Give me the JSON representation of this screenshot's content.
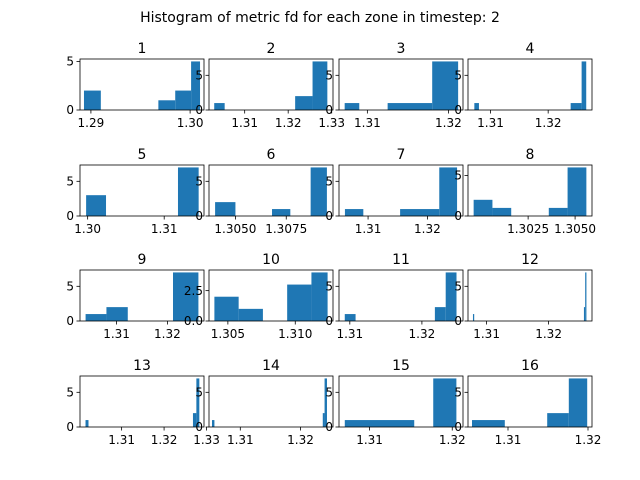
{
  "chart_data": {
    "type": "bar",
    "title": "Histogram of metric fd for each zone in timestep: 2",
    "bar_color": "#1f77b4",
    "panels": [
      {
        "label": "1",
        "xlim": [
          1.2889,
          1.3014
        ],
        "ylim": [
          0,
          5.25
        ],
        "bars": [
          [
            1.2893,
            1.291,
            2
          ],
          [
            1.2968,
            1.2985,
            1
          ],
          [
            1.2985,
            1.3001,
            2
          ],
          [
            1.3001,
            1.301,
            5
          ]
        ],
        "xticks": [
          [
            1.29,
            "1.29"
          ],
          [
            1.3,
            "1.30"
          ]
        ],
        "yticks": [
          [
            0,
            "0"
          ],
          [
            5,
            "5"
          ]
        ]
      },
      {
        "label": "2",
        "xlim": [
          1.3018,
          1.3303
        ],
        "ylim": [
          0,
          7.35
        ],
        "bars": [
          [
            1.303,
            1.3054,
            1
          ],
          [
            1.3216,
            1.3256,
            2
          ],
          [
            1.3256,
            1.329,
            7
          ]
        ],
        "xticks": [
          [
            1.31,
            "1.31"
          ],
          [
            1.32,
            "1.32"
          ],
          [
            1.33,
            "1.33"
          ]
        ],
        "yticks": [
          [
            0,
            "0"
          ],
          [
            5,
            "5"
          ]
        ]
      },
      {
        "label": "3",
        "xlim": [
          1.3065,
          1.3218
        ],
        "ylim": [
          0,
          7.35
        ],
        "bars": [
          [
            1.3072,
            1.309,
            1
          ],
          [
            1.3125,
            1.318,
            1
          ],
          [
            1.318,
            1.3212,
            7
          ]
        ],
        "xticks": [
          [
            1.31,
            "1.31"
          ],
          [
            1.32,
            "1.32"
          ]
        ],
        "yticks": [
          [
            0,
            "0"
          ],
          [
            5,
            "5"
          ]
        ]
      },
      {
        "label": "4",
        "xlim": [
          1.3061,
          1.3276
        ],
        "ylim": [
          0,
          7.35
        ],
        "bars": [
          [
            1.3072,
            1.308,
            1
          ],
          [
            1.3239,
            1.3258,
            1
          ],
          [
            1.3258,
            1.3266,
            7
          ]
        ],
        "xticks": [
          [
            1.31,
            "1.31"
          ],
          [
            1.32,
            "1.32"
          ]
        ],
        "yticks": [
          [
            0,
            "0"
          ],
          [
            5,
            "5"
          ]
        ]
      },
      {
        "label": "5",
        "xlim": [
          1.299,
          1.3152
        ],
        "ylim": [
          0,
          7.35
        ],
        "bars": [
          [
            1.2998,
            1.3024,
            3
          ],
          [
            1.3118,
            1.3145,
            7
          ]
        ],
        "xticks": [
          [
            1.3,
            "1.30"
          ],
          [
            1.31,
            "1.31"
          ]
        ],
        "yticks": [
          [
            0,
            "0"
          ],
          [
            5,
            "5"
          ]
        ]
      },
      {
        "label": "6",
        "xlim": [
          1.3037,
          1.3098
        ],
        "ylim": [
          0,
          7.35
        ],
        "bars": [
          [
            1.304,
            1.305,
            2
          ],
          [
            1.3068,
            1.3077,
            1
          ],
          [
            1.3087,
            1.3095,
            7
          ]
        ],
        "xticks": [
          [
            1.305,
            "1.3050"
          ],
          [
            1.3075,
            "1.3075"
          ]
        ],
        "yticks": [
          [
            0,
            "0"
          ],
          [
            5,
            "5"
          ]
        ]
      },
      {
        "label": "7",
        "xlim": [
          1.3051,
          1.326
        ],
        "ylim": [
          0,
          7.35
        ],
        "bars": [
          [
            1.3061,
            1.3092,
            1
          ],
          [
            1.3154,
            1.322,
            1
          ],
          [
            1.322,
            1.325,
            7
          ]
        ],
        "xticks": [
          [
            1.31,
            "1.31"
          ],
          [
            1.32,
            "1.32"
          ]
        ],
        "yticks": [
          [
            0,
            "0"
          ],
          [
            5,
            "5"
          ]
        ]
      },
      {
        "label": "8",
        "xlim": [
          1.2993,
          1.3059
        ],
        "ylim": [
          0,
          6.3
        ],
        "bars": [
          [
            1.2996,
            1.3006,
            2
          ],
          [
            1.3006,
            1.3016,
            1
          ],
          [
            1.3036,
            1.3046,
            1
          ],
          [
            1.3046,
            1.3056,
            6
          ]
        ],
        "xticks": [
          [
            1.3025,
            "1.3025"
          ],
          [
            1.305,
            "1.3050"
          ]
        ],
        "yticks": [
          [
            0,
            "0"
          ],
          [
            5,
            "5"
          ]
        ]
      },
      {
        "label": "9",
        "xlim": [
          1.3028,
          1.3272
        ],
        "ylim": [
          0,
          7.35
        ],
        "bars": [
          [
            1.3039,
            1.308,
            1
          ],
          [
            1.308,
            1.3122,
            2
          ],
          [
            1.3211,
            1.3261,
            7
          ]
        ],
        "xticks": [
          [
            1.31,
            "1.31"
          ],
          [
            1.32,
            "1.32"
          ]
        ],
        "yticks": [
          [
            0,
            "0"
          ],
          [
            5,
            "5"
          ]
        ]
      },
      {
        "label": "10",
        "xlim": [
          1.3036,
          1.3128
        ],
        "ylim": [
          0,
          4.2
        ],
        "bars": [
          [
            1.304,
            1.3058,
            2
          ],
          [
            1.3058,
            1.3076,
            1
          ],
          [
            1.3094,
            1.3112,
            3
          ],
          [
            1.3112,
            1.3124,
            4
          ]
        ],
        "xticks": [
          [
            1.305,
            "1.305"
          ],
          [
            1.31,
            "1.310"
          ]
        ],
        "yticks": [
          [
            0,
            "0.0"
          ],
          [
            2.5,
            "2.5"
          ]
        ]
      },
      {
        "label": "11",
        "xlim": [
          1.3085,
          1.3257
        ],
        "ylim": [
          0,
          7.35
        ],
        "bars": [
          [
            1.3093,
            1.3108,
            1
          ],
          [
            1.3218,
            1.3233,
            2
          ],
          [
            1.3233,
            1.3248,
            7
          ]
        ],
        "xticks": [
          [
            1.31,
            "1.31"
          ],
          [
            1.32,
            "1.32"
          ]
        ],
        "yticks": [
          [
            0,
            "0"
          ],
          [
            5,
            "5"
          ]
        ]
      },
      {
        "label": "12",
        "xlim": [
          1.307,
          1.327
        ],
        "ylim": [
          0,
          7.35
        ],
        "bars": [
          [
            1.3078,
            1.308,
            1
          ],
          [
            1.3257,
            1.3259,
            2
          ],
          [
            1.3259,
            1.3261,
            7
          ]
        ],
        "xticks": [
          [
            1.31,
            "1.31"
          ],
          [
            1.32,
            "1.32"
          ]
        ],
        "yticks": [
          [
            0,
            "0"
          ],
          [
            5,
            "5"
          ]
        ]
      },
      {
        "label": "13",
        "xlim": [
          1.3002,
          1.3294
        ],
        "ylim": [
          0,
          7.35
        ],
        "bars": [
          [
            1.3015,
            1.3022,
            1
          ],
          [
            1.3268,
            1.3276,
            2
          ],
          [
            1.3276,
            1.3283,
            7
          ]
        ],
        "xticks": [
          [
            1.31,
            "1.31"
          ],
          [
            1.32,
            "1.32"
          ],
          [
            1.33,
            "1.33"
          ]
        ],
        "yticks": [
          [
            0,
            "0"
          ],
          [
            5,
            "5"
          ]
        ]
      },
      {
        "label": "14",
        "xlim": [
          1.3048,
          1.3254
        ],
        "ylim": [
          0,
          7.35
        ],
        "bars": [
          [
            1.3053,
            1.3057,
            1
          ],
          [
            1.3237,
            1.324,
            2
          ],
          [
            1.324,
            1.3244,
            7
          ]
        ],
        "xticks": [
          [
            1.31,
            "1.31"
          ],
          [
            1.32,
            "1.32"
          ]
        ],
        "yticks": [
          [
            0,
            "0"
          ],
          [
            5,
            "5"
          ]
        ]
      },
      {
        "label": "15",
        "xlim": [
          1.3063,
          1.3213
        ],
        "ylim": [
          0,
          7.35
        ],
        "bars": [
          [
            1.307,
            1.3154,
            1
          ],
          [
            1.3177,
            1.3205,
            7
          ]
        ],
        "xticks": [
          [
            1.31,
            "1.31"
          ],
          [
            1.32,
            "1.32"
          ]
        ],
        "yticks": [
          [
            0,
            "0"
          ],
          [
            5,
            "5"
          ]
        ]
      },
      {
        "label": "16",
        "xlim": [
          1.305,
          1.3205
        ],
        "ylim": [
          0,
          7.35
        ],
        "bars": [
          [
            1.3055,
            1.3096,
            1
          ],
          [
            1.3149,
            1.3176,
            2
          ],
          [
            1.3176,
            1.3199,
            7
          ]
        ],
        "xticks": [
          [
            1.31,
            "1.31"
          ],
          [
            1.32,
            "1.32"
          ]
        ],
        "yticks": [
          [
            0,
            "0"
          ],
          [
            5,
            "5"
          ]
        ]
      }
    ]
  }
}
